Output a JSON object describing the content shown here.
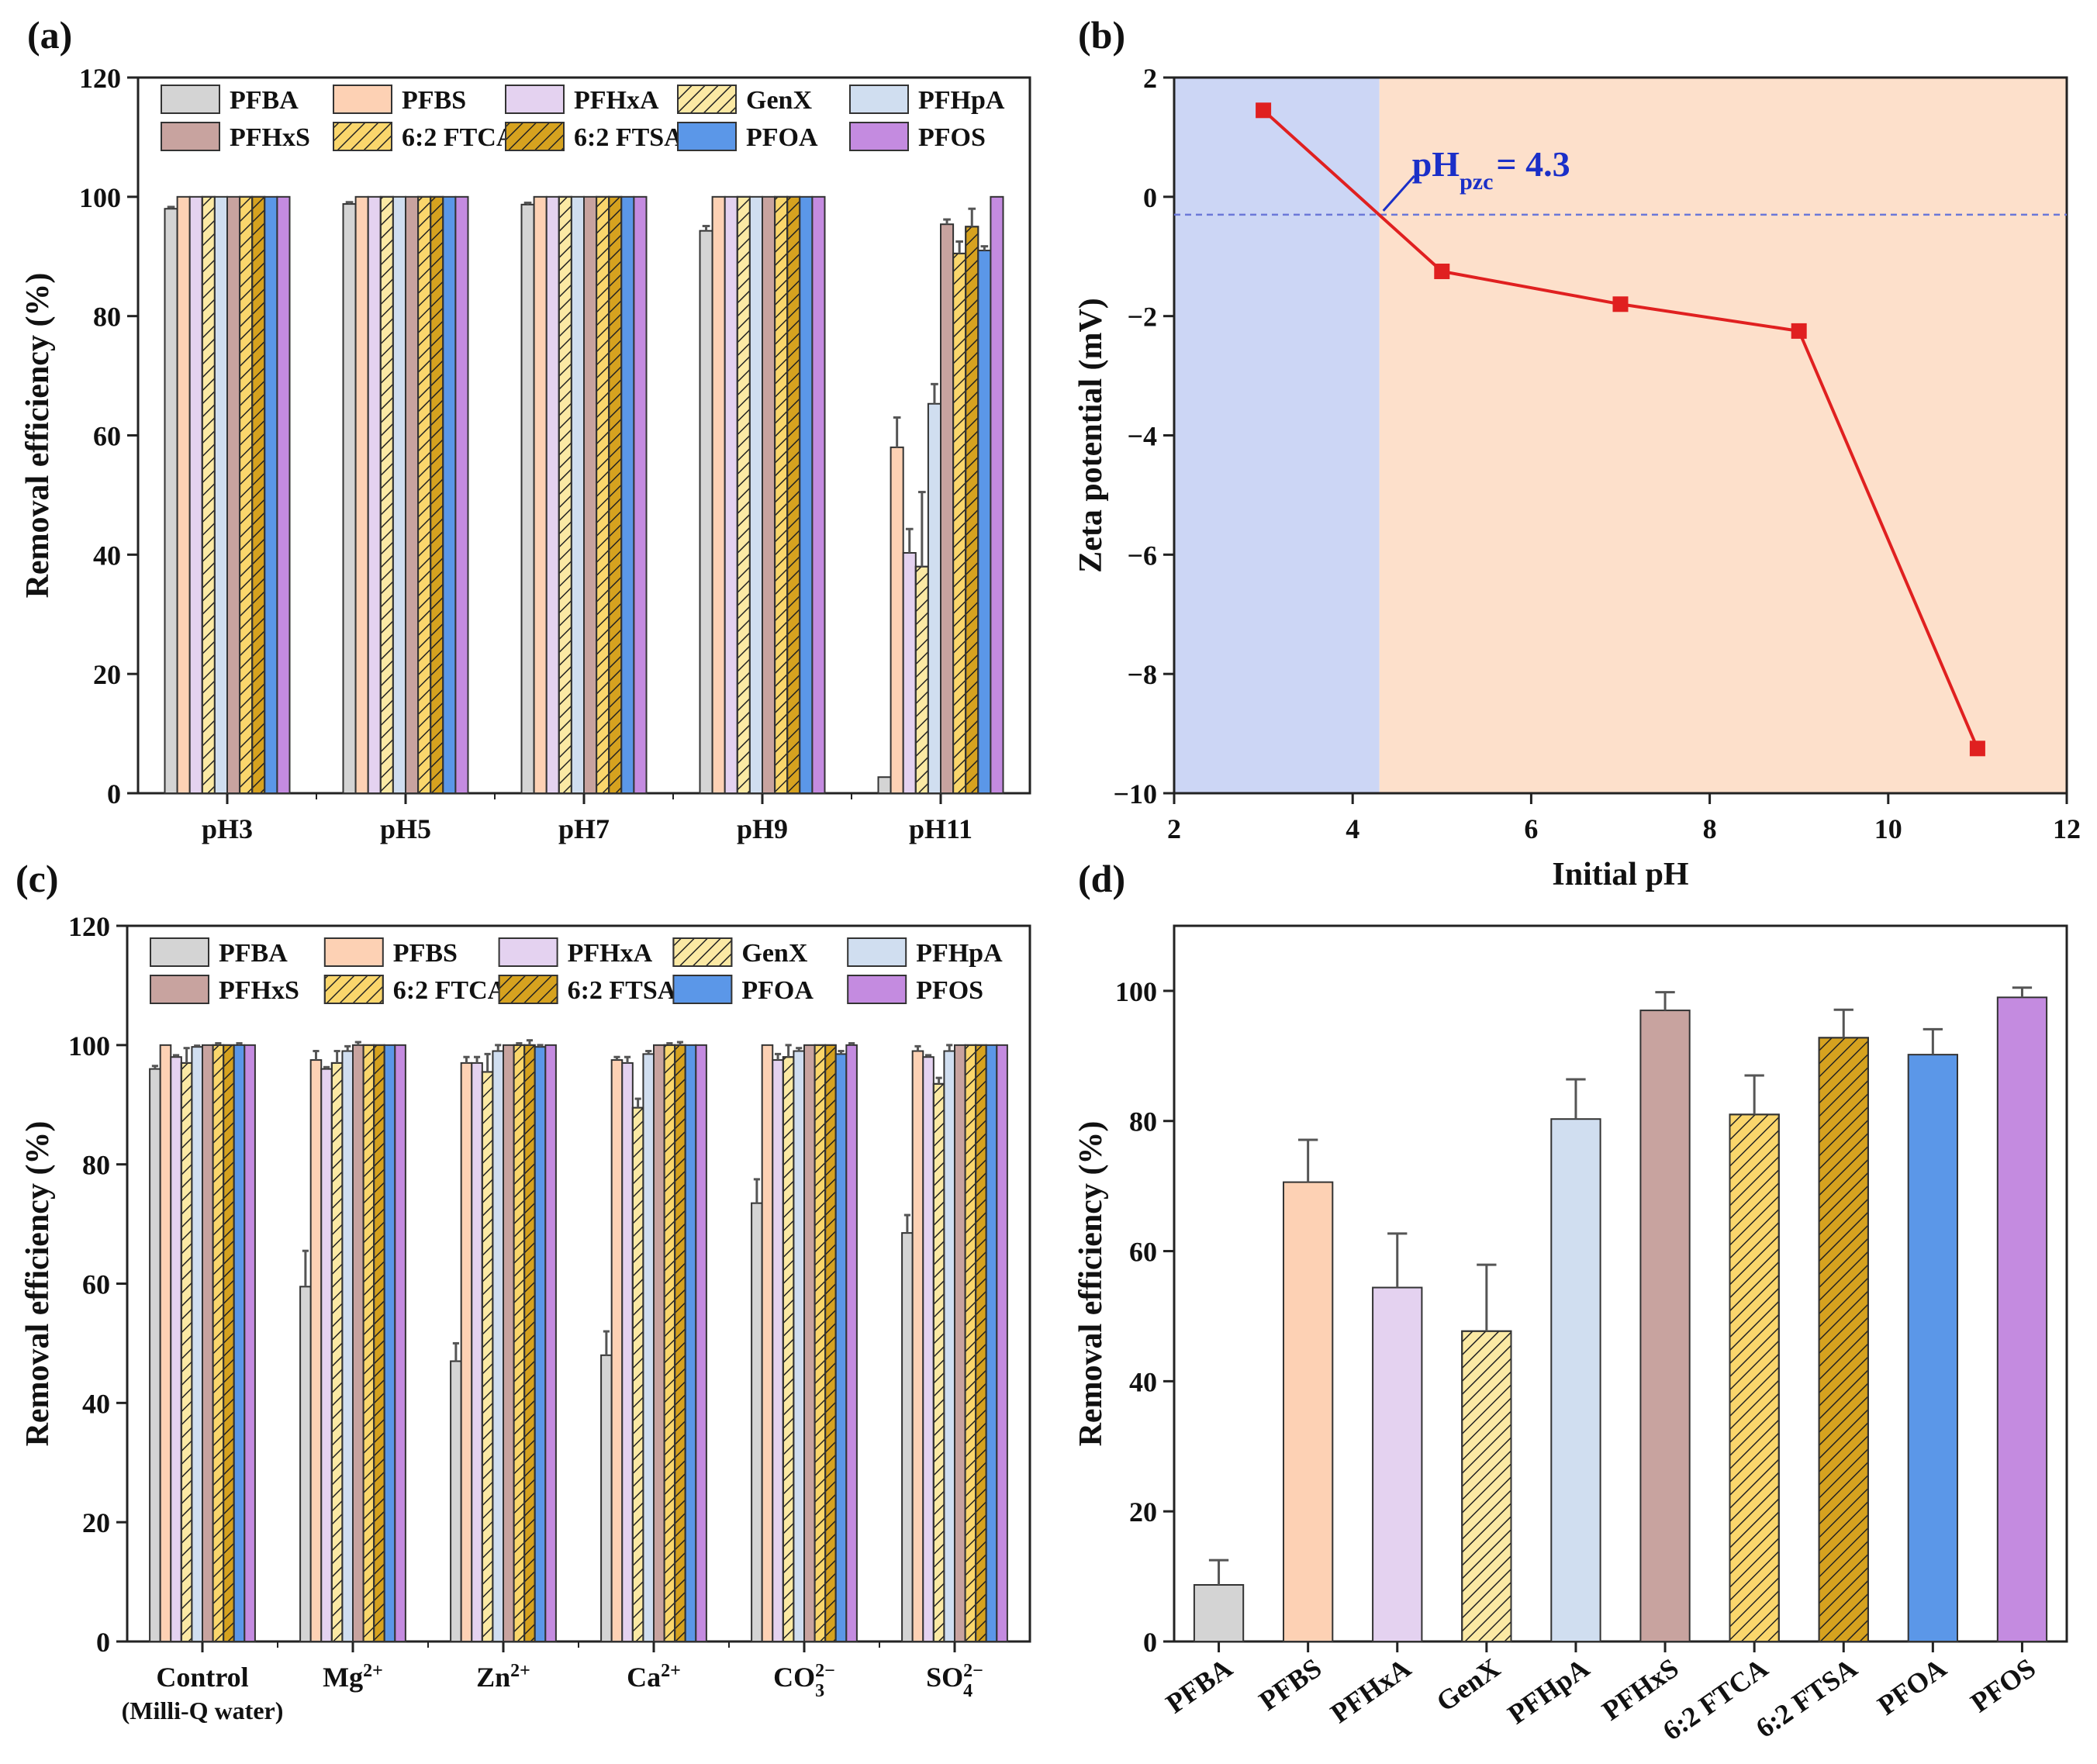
{
  "panel_labels": [
    "(a)",
    "(b)",
    "(c)",
    "(d)"
  ],
  "series_names": [
    "PFBA",
    "PFBS",
    "PFHxA",
    "GenX",
    "PFHpA",
    "PFHxS",
    "6:2 FTCA",
    "6:2 FTSA",
    "PFOA",
    "PFOS"
  ],
  "series_colors": [
    "#d4d4d4",
    "#fdd1b4",
    "#e4d2f0",
    "#fbe9a4",
    "#d0def0",
    "#c8a39f",
    "#fad66c",
    "#d6a21f",
    "#5b97e8",
    "#c48be0"
  ],
  "series_hatched": [
    false,
    false,
    false,
    true,
    false,
    false,
    true,
    true,
    false,
    false
  ],
  "chart_data": [
    {
      "type": "bar",
      "title": "(a)",
      "ylabel": "Removal efficiency (%)",
      "xlabel": "",
      "ylim": [
        0,
        120
      ],
      "yticks": [
        0,
        20,
        40,
        60,
        80,
        100,
        120
      ],
      "categories": [
        "pH3",
        "pH5",
        "pH7",
        "pH9",
        "pH11"
      ],
      "legend": "top",
      "series": [
        {
          "name": "PFBA",
          "values": [
            98,
            98.8,
            98.7,
            94.3,
            2.7
          ],
          "errors": [
            0.3,
            0.3,
            0.3,
            0.8,
            0
          ]
        },
        {
          "name": "PFBS",
          "values": [
            100,
            100,
            100,
            100,
            58
          ],
          "errors": [
            0,
            0,
            0,
            0,
            5
          ]
        },
        {
          "name": "PFHxA",
          "values": [
            100,
            100,
            100,
            100,
            40.3
          ],
          "errors": [
            0,
            0,
            0,
            0,
            4
          ]
        },
        {
          "name": "GenX",
          "values": [
            100,
            100,
            100,
            100,
            38
          ],
          "errors": [
            0,
            0,
            0,
            0,
            12.5
          ]
        },
        {
          "name": "PFHpA",
          "values": [
            100,
            100,
            100,
            100,
            65.3
          ],
          "errors": [
            0,
            0,
            0,
            0,
            3.3
          ]
        },
        {
          "name": "PFHxS",
          "values": [
            100,
            100,
            100,
            100,
            95.4
          ],
          "errors": [
            0,
            0,
            0,
            0,
            0.8
          ]
        },
        {
          "name": "6:2 FTCA",
          "values": [
            100,
            100,
            100,
            100,
            90.5
          ],
          "errors": [
            0,
            0,
            0,
            0,
            2
          ]
        },
        {
          "name": "6:2 FTSA",
          "values": [
            100,
            100,
            100,
            100,
            95
          ],
          "errors": [
            0,
            0,
            0,
            0,
            3
          ]
        },
        {
          "name": "PFOA",
          "values": [
            100,
            100,
            100,
            100,
            91
          ],
          "errors": [
            0,
            0,
            0,
            0,
            0.7
          ]
        },
        {
          "name": "PFOS",
          "values": [
            100,
            100,
            100,
            100,
            100
          ],
          "errors": [
            0,
            0,
            0,
            0,
            0
          ]
        }
      ]
    },
    {
      "type": "line",
      "title": "(b)",
      "xlabel": "Initial pH",
      "ylabel": "Zeta potential (mV)",
      "xlim": [
        2,
        12
      ],
      "ylim": [
        -10,
        2
      ],
      "xticks": [
        2,
        4,
        6,
        8,
        10,
        12
      ],
      "yticks": [
        -10,
        -8,
        -6,
        -4,
        -2,
        0,
        2
      ],
      "x": [
        3,
        5,
        7,
        9,
        11
      ],
      "y": [
        1.45,
        -1.25,
        -1.8,
        -2.25,
        -9.25
      ],
      "line_color": "#e02020",
      "pzc": 4.3,
      "pzc_line_y": -0.3,
      "region_colors": [
        "#ccd6f5",
        "#fde0cb"
      ],
      "annotation": {
        "base": "pH",
        "sub": "pzc",
        "rest": "= 4.3",
        "color": "#1a2fc8"
      }
    },
    {
      "type": "bar",
      "title": "(c)",
      "ylabel": "Removal efficiency (%)",
      "xlabel": "",
      "ylim": [
        0,
        120
      ],
      "yticks": [
        0,
        20,
        40,
        60,
        80,
        100,
        120
      ],
      "categories": [
        {
          "base": "Control",
          "line2": "(Milli-Q water)"
        },
        {
          "base": "Mg",
          "sup": "2+"
        },
        {
          "base": "Zn",
          "sup": "2+"
        },
        {
          "base": "Ca",
          "sup": "2+"
        },
        {
          "base": "CO",
          "sub": "3",
          "sup": "2−"
        },
        {
          "base": "SO",
          "sub": "4",
          "sup": "2−"
        }
      ],
      "legend": "top",
      "series": [
        {
          "name": "PFBA",
          "values": [
            96,
            59.5,
            47,
            48,
            73.5,
            68.5
          ],
          "errors": [
            0.5,
            6,
            3,
            4,
            4,
            3
          ]
        },
        {
          "name": "PFBS",
          "values": [
            100,
            97.5,
            97,
            97.5,
            100,
            99
          ],
          "errors": [
            0,
            1.5,
            1,
            0.5,
            0,
            0.8
          ]
        },
        {
          "name": "PFHxA",
          "values": [
            98,
            96,
            97,
            97,
            97.5,
            98
          ],
          "errors": [
            0.3,
            0.3,
            1,
            1,
            1,
            0.3
          ]
        },
        {
          "name": "GenX",
          "values": [
            97,
            97,
            95.5,
            89.5,
            98,
            93.5
          ],
          "errors": [
            2.5,
            2,
            3,
            1.5,
            2,
            1
          ]
        },
        {
          "name": "PFHpA",
          "values": [
            99.7,
            99,
            99,
            98.5,
            99,
            99
          ],
          "errors": [
            0.2,
            0.8,
            1,
            0.5,
            0.5,
            1
          ]
        },
        {
          "name": "PFHxS",
          "values": [
            100,
            100,
            100,
            100,
            100,
            100
          ],
          "errors": [
            0,
            0.5,
            0,
            0,
            0,
            0
          ]
        },
        {
          "name": "6:2 FTCA",
          "values": [
            100,
            100,
            100,
            100,
            100,
            100
          ],
          "errors": [
            0.3,
            0,
            0.3,
            0.3,
            0,
            0
          ]
        },
        {
          "name": "6:2 FTSA",
          "values": [
            100,
            100,
            100,
            100,
            100,
            100
          ],
          "errors": [
            0,
            0,
            0.8,
            0.5,
            0,
            0
          ]
        },
        {
          "name": "PFOA",
          "values": [
            100,
            100,
            99.7,
            100,
            98.5,
            100
          ],
          "errors": [
            0.3,
            0,
            0.3,
            0,
            0.5,
            0
          ]
        },
        {
          "name": "PFOS",
          "values": [
            100,
            100,
            100,
            100,
            100,
            100
          ],
          "errors": [
            0,
            0,
            0,
            0,
            0.3,
            0
          ]
        }
      ]
    },
    {
      "type": "bar",
      "title": "(d)",
      "ylabel": "Removal efficiency (%)",
      "xlabel": "",
      "ylim": [
        0,
        110
      ],
      "yticks": [
        0,
        20,
        40,
        60,
        80,
        100
      ],
      "categories": [
        "PFBA",
        "PFBS",
        "PFHxA",
        "GenX",
        "PFHpA",
        "PFHxS",
        "6:2 FTCA",
        "6:2 FTSA",
        "PFOA",
        "PFOS"
      ],
      "values": [
        8.7,
        70.6,
        54.4,
        47.7,
        80.3,
        97,
        81,
        92.8,
        90.2,
        99
      ],
      "errors": [
        3.8,
        6.5,
        8.3,
        10.2,
        6.1,
        2.8,
        6,
        4.3,
        3.9,
        1.5
      ]
    }
  ]
}
